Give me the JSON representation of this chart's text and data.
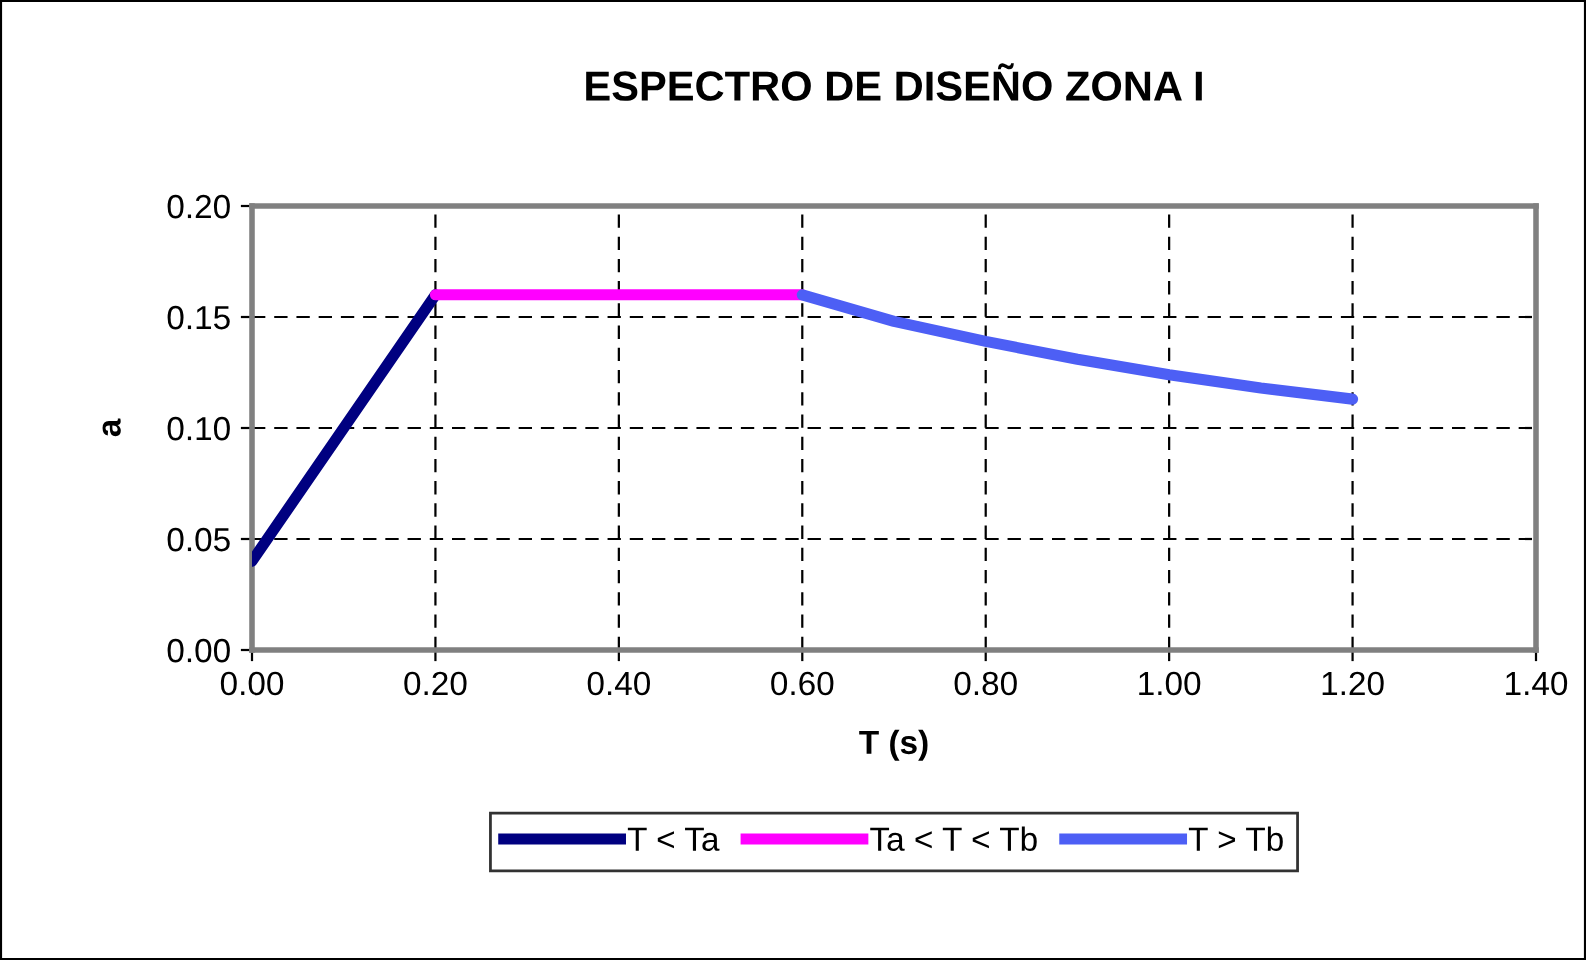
{
  "chart_data": {
    "type": "line",
    "title": "ESPECTRO DE DISEÑO ZONA I",
    "xlabel": "T (s)",
    "ylabel": "a",
    "series": [
      {
        "name": "T < Ta",
        "color": "#000080",
        "x": [
          0.0,
          0.2
        ],
        "values": [
          0.04,
          0.16
        ]
      },
      {
        "name": "Ta < T < Tb",
        "color": "#ff00ff",
        "x": [
          0.2,
          0.6
        ],
        "values": [
          0.16,
          0.16
        ]
      },
      {
        "name": "T > Tb",
        "color": "#4d5ff5",
        "x": [
          0.6,
          0.7,
          0.8,
          0.9,
          1.0,
          1.1,
          1.2
        ],
        "values": [
          0.16,
          0.148,
          0.139,
          0.131,
          0.124,
          0.118,
          0.113
        ]
      }
    ],
    "xlim": [
      0,
      1.4
    ],
    "xticks": [
      {
        "value": 0,
        "label": "0.00"
      },
      {
        "value": 0.2,
        "label": "0.20"
      },
      {
        "value": 0.4,
        "label": "0.40"
      },
      {
        "value": 0.6,
        "label": "0.60"
      },
      {
        "value": 0.8,
        "label": "0.80"
      },
      {
        "value": 1.0,
        "label": "1.00"
      },
      {
        "value": 1.2,
        "label": "1.20"
      },
      {
        "value": 1.4,
        "label": "1.40"
      }
    ],
    "ylim": [
      0,
      0.2
    ],
    "yticks": [
      {
        "value": 0,
        "label": "0.00"
      },
      {
        "value": 0.05,
        "label": "0.05"
      },
      {
        "value": 0.1,
        "label": "0.10"
      },
      {
        "value": 0.15,
        "label": "0.15"
      },
      {
        "value": 0.2,
        "label": "0.20"
      }
    ],
    "grid": true,
    "legend": "bottom",
    "line_style": "solid",
    "marker": "none"
  }
}
